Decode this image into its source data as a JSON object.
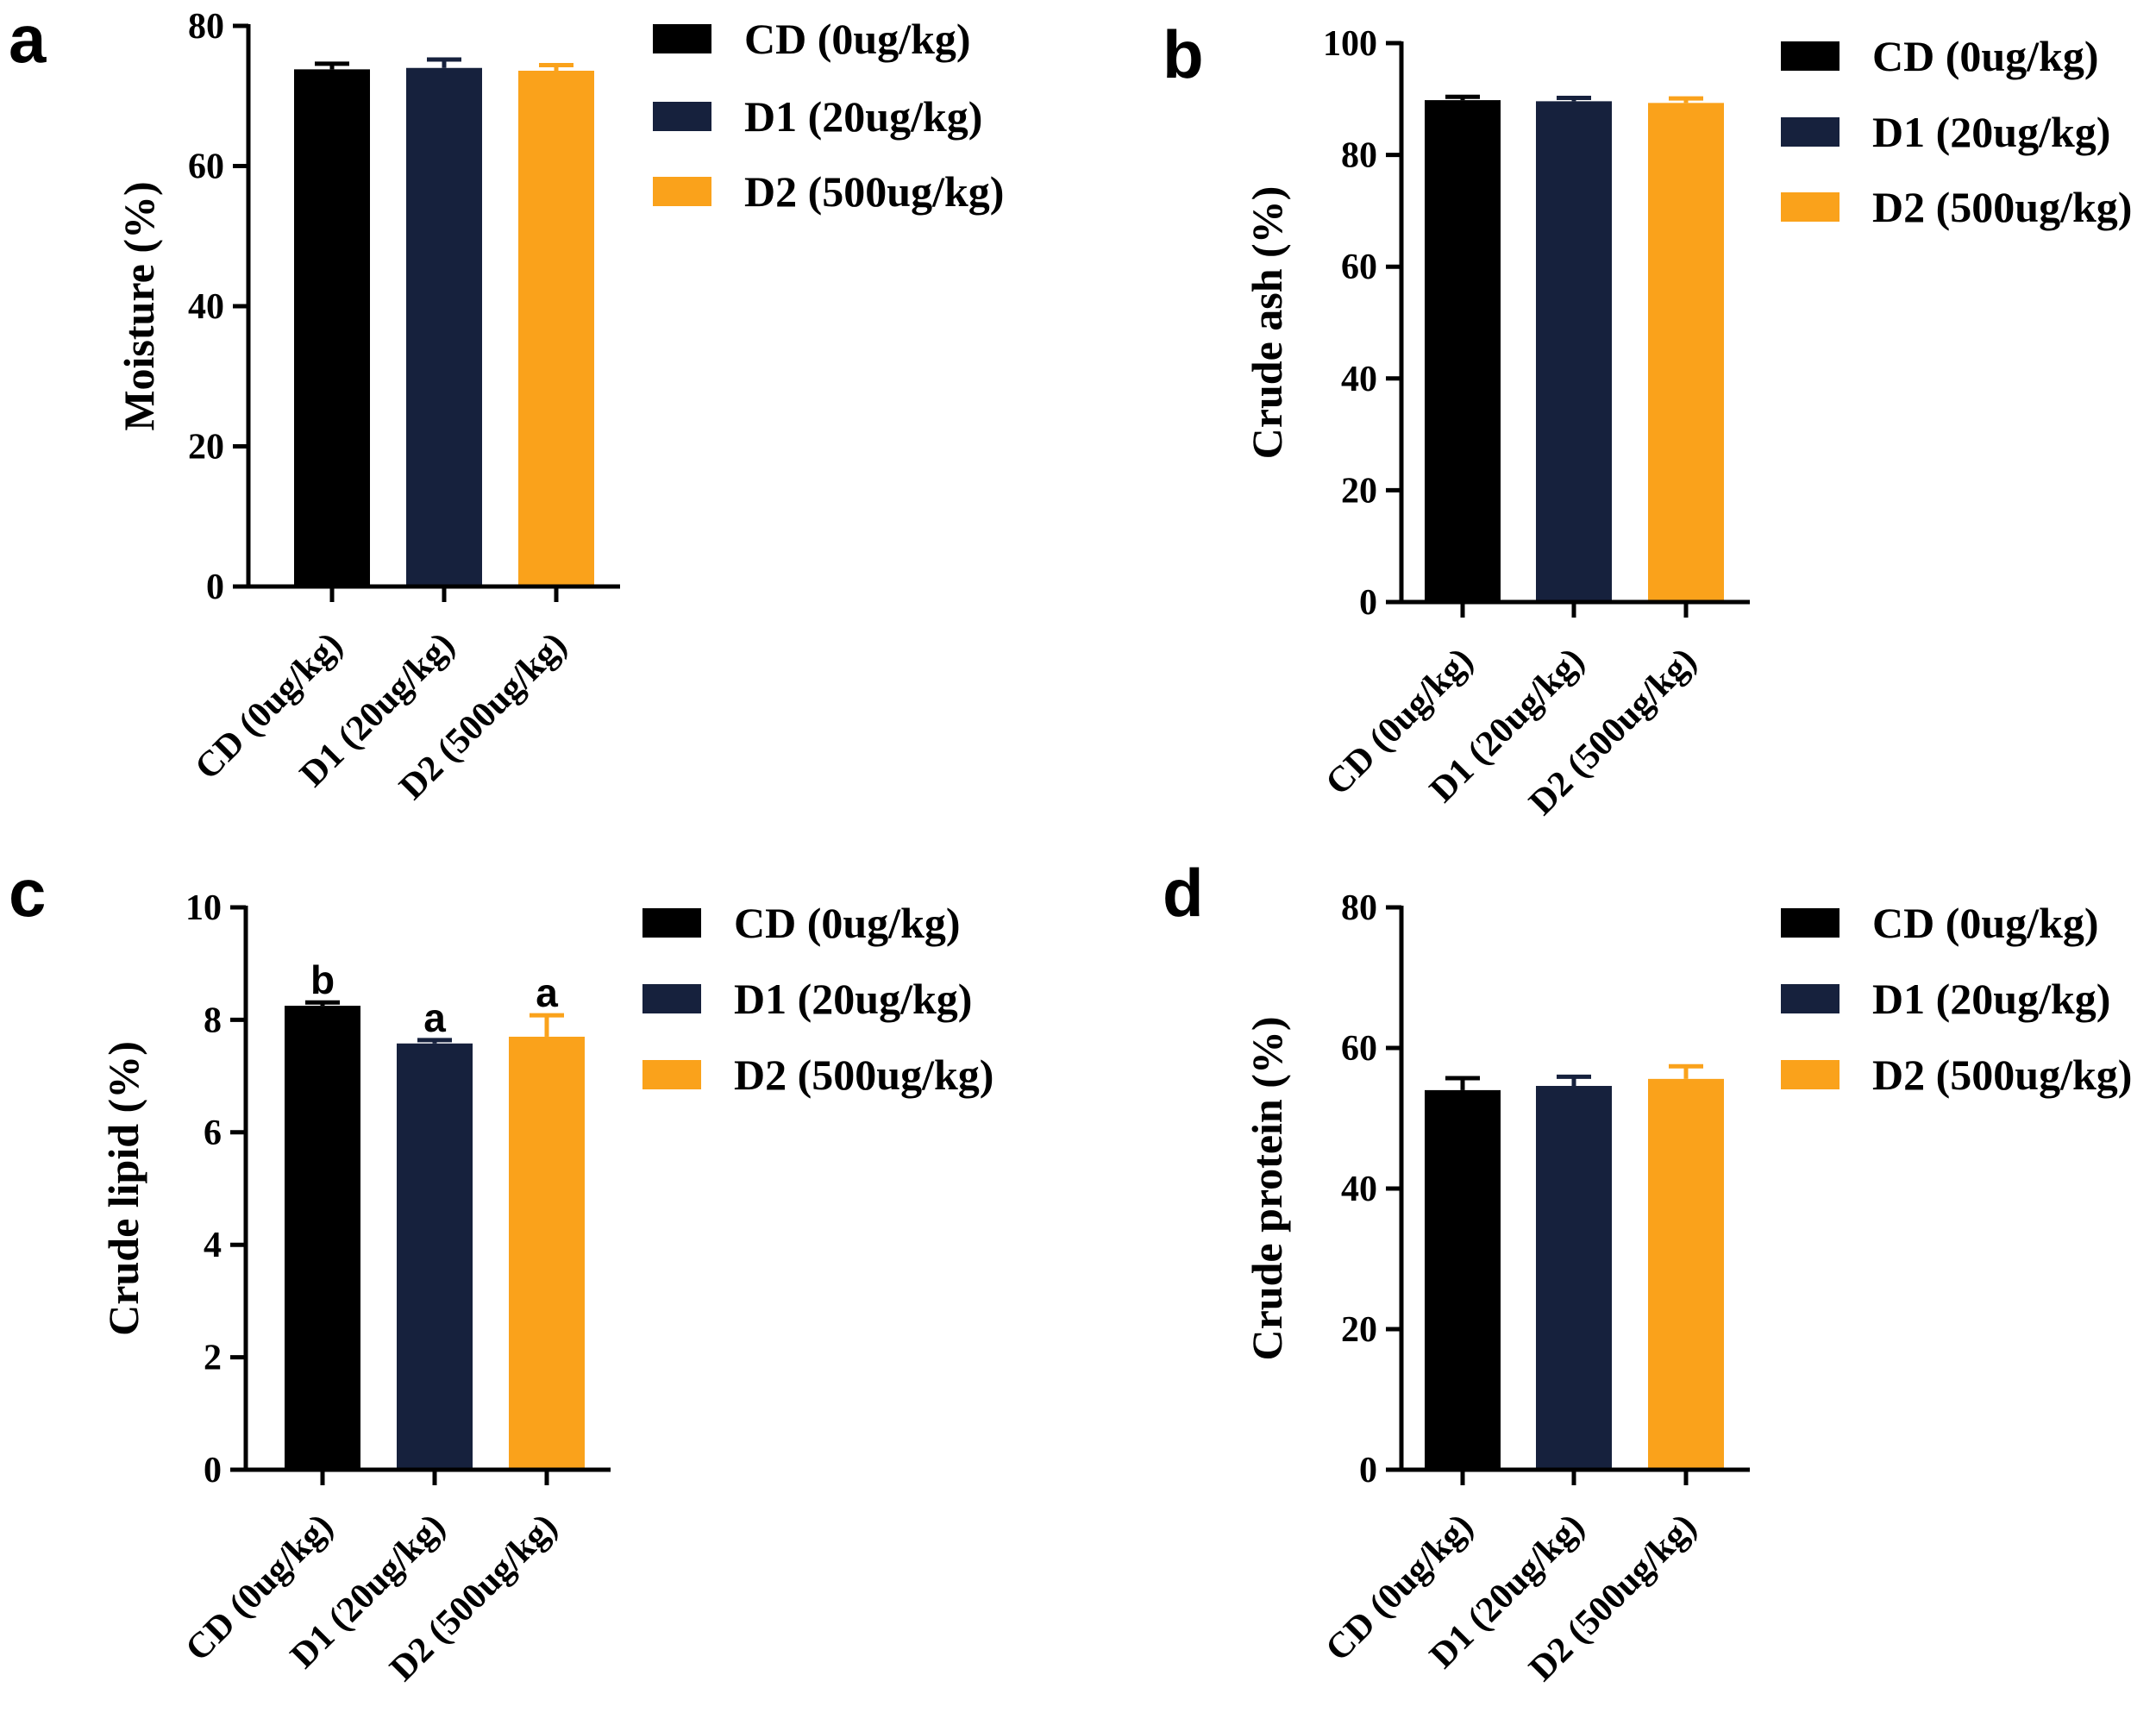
{
  "legend_colors": {
    "CD (0ug/kg)": "#000000",
    "D1 (20ug/kg)": "#16213d",
    "D2 (500ug/kg)": "#faa21b"
  },
  "chart_data": [
    {
      "panel": "a",
      "type": "bar",
      "ylabel": "Moisture (%)",
      "categories": [
        "CD (0ug/kg)",
        "D1 (20ug/kg)",
        "D2 (500ug/kg)"
      ],
      "values": [
        73.8,
        74.0,
        73.6
      ],
      "errors": [
        0.8,
        1.2,
        0.8
      ],
      "significance": [],
      "ylim": [
        0,
        80
      ],
      "yticks": [
        0,
        20,
        40,
        60,
        80
      ],
      "legend": [
        "CD (0ug/kg)",
        "D1 (20ug/kg)",
        "D2 (500ug/kg)"
      ],
      "legend_position": "right"
    },
    {
      "panel": "b",
      "type": "bar",
      "ylabel": "Crude ash (%)",
      "categories": [
        "CD (0ug/kg)",
        "D1 (20ug/kg)",
        "D2 (500ug/kg)"
      ],
      "values": [
        89.8,
        89.6,
        89.3
      ],
      "errors": [
        0.6,
        0.6,
        0.8
      ],
      "significance": [],
      "ylim": [
        0,
        100
      ],
      "yticks": [
        0,
        20,
        40,
        60,
        80,
        100
      ],
      "legend": [
        "CD (0ug/kg)",
        "D1 (20ug/kg)",
        "D2 (500ug/kg)"
      ],
      "legend_position": "right"
    },
    {
      "panel": "c",
      "type": "bar",
      "ylabel": "Crude lipid (%)",
      "categories": [
        "CD (0ug/kg)",
        "D1 (20ug/kg)",
        "D2 (500ug/kg)"
      ],
      "values": [
        8.25,
        7.58,
        7.7
      ],
      "errors": [
        0.06,
        0.06,
        0.38
      ],
      "significance": [
        "b",
        "a",
        "a"
      ],
      "ylim": [
        0,
        10
      ],
      "yticks": [
        0,
        2,
        4,
        6,
        8,
        10
      ],
      "legend": [
        "CD (0ug/kg)",
        "D1 (20ug/kg)",
        "D2 (500ug/kg)"
      ],
      "legend_position": "right"
    },
    {
      "panel": "d",
      "type": "bar",
      "ylabel": "Crude protein (%)",
      "categories": [
        "CD (0ug/kg)",
        "D1 (20ug/kg)",
        "D2 (500ug/kg)"
      ],
      "values": [
        54.0,
        54.6,
        55.6
      ],
      "errors": [
        1.7,
        1.3,
        1.8
      ],
      "significance": [],
      "ylim": [
        0,
        80
      ],
      "yticks": [
        0,
        20,
        40,
        60,
        80
      ],
      "legend": [
        "CD (0ug/kg)",
        "D1 (20ug/kg)",
        "D2 (500ug/kg)"
      ],
      "legend_position": "right"
    }
  ]
}
